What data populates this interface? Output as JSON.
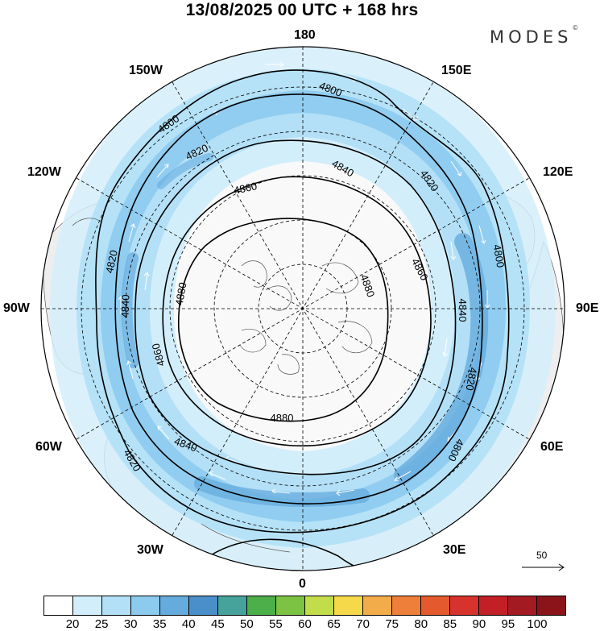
{
  "header": {
    "title": "13/08/2025  00 UTC  + 168 hrs",
    "brand": "MODES",
    "brand_mark": "©"
  },
  "map": {
    "projection": "north polar stereographic",
    "longitude_labels": {
      "top": "180",
      "bottom": "0",
      "left": "90W",
      "right": "90E",
      "upper_left": "150W",
      "upper_right": "150E",
      "mid_upper_left": "120W",
      "mid_upper_right": "120E",
      "mid_lower_left": "60W",
      "mid_lower_right": "60E",
      "lower_left": "30W",
      "lower_right": "30E"
    },
    "contour_labels": [
      "4800",
      "4820",
      "4840",
      "4860",
      "4880"
    ],
    "wind_arrow_key": "50",
    "colors": {
      "land": "#eeeeee",
      "coast": "#555555",
      "contour": "#000000",
      "grid": "#000000"
    }
  },
  "colorbar": {
    "ticks": [
      "20",
      "25",
      "30",
      "35",
      "40",
      "45",
      "50",
      "55",
      "60",
      "65",
      "70",
      "75",
      "80",
      "85",
      "90",
      "95",
      "100"
    ],
    "colors": [
      "#ffffff",
      "#d3eefb",
      "#b3e0f7",
      "#8ccbee",
      "#65abdd",
      "#4a8fc9",
      "#46a39b",
      "#4caf4a",
      "#7cc243",
      "#c2dd4a",
      "#f6d94a",
      "#f3ac4a",
      "#ee7f3a",
      "#e45a2e",
      "#d8322c",
      "#c21f27",
      "#a41a22",
      "#8a1419"
    ]
  }
}
